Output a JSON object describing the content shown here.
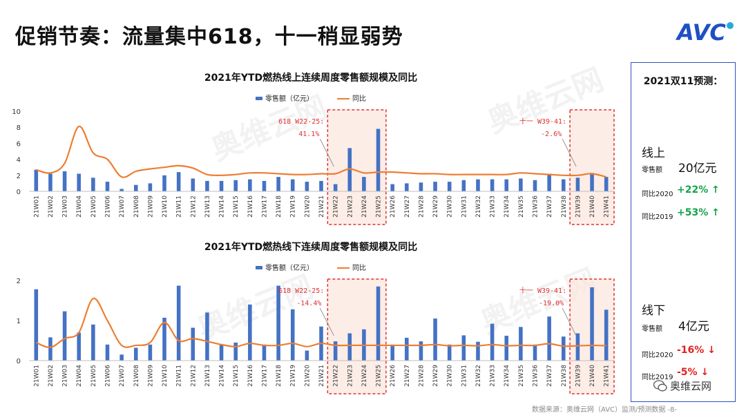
{
  "title": "促销节奏：流量集中618，十一稍显弱势",
  "logo_text": "AVC",
  "watermark_text": "奥维云网",
  "colors": {
    "bar": "#4472c4",
    "line": "#ed7d31",
    "highlight_border": "#e03030",
    "highlight_fill": "#fbe5dd",
    "up": "#14a24a",
    "down": "#e0201f",
    "panel_border": "#2d4ec8"
  },
  "chart_data": [
    {
      "type": "bar",
      "title": "2021年YTD燃热线上连续周度零售额规模及同比",
      "legend": [
        "零售额（亿元）",
        "同比"
      ],
      "categories": [
        "21W01",
        "21W02",
        "21W03",
        "21W04",
        "21W05",
        "21W06",
        "21W07",
        "21W08",
        "21W09",
        "21W10",
        "21W11",
        "21W12",
        "21W13",
        "21W14",
        "21W15",
        "21W16",
        "21W17",
        "21W18",
        "21W19",
        "21W20",
        "21W21",
        "21W22",
        "21W23",
        "21W24",
        "21W25",
        "21W26",
        "21W27",
        "21W28",
        "21W29",
        "21W30",
        "21W31",
        "21W32",
        "21W33",
        "21W34",
        "21W35",
        "21W36",
        "21W37",
        "21W38",
        "21W39",
        "21W40",
        "21W41"
      ],
      "series": [
        {
          "name": "零售额（亿元）",
          "kind": "bar",
          "values": [
            2.7,
            2.2,
            2.5,
            2.2,
            1.7,
            1.2,
            0.3,
            0.8,
            1.0,
            2.0,
            2.4,
            1.6,
            1.3,
            1.3,
            1.4,
            1.5,
            1.3,
            1.8,
            1.5,
            1.2,
            1.3,
            0.9,
            5.4,
            1.8,
            7.8,
            0.9,
            1.0,
            1.1,
            1.2,
            1.2,
            1.4,
            1.5,
            1.5,
            1.5,
            1.6,
            1.4,
            2.2,
            1.5,
            1.7,
            2.3,
            1.8
          ]
        },
        {
          "name": "同比",
          "kind": "line",
          "values": [
            2.7,
            2.3,
            3.5,
            8.1,
            4.8,
            4.0,
            1.8,
            2.5,
            2.8,
            3.0,
            3.2,
            2.9,
            2.1,
            2.0,
            2.1,
            2.3,
            2.3,
            2.2,
            2.1,
            2.1,
            2.2,
            2.2,
            2.8,
            2.3,
            2.4,
            2.4,
            2.3,
            2.2,
            2.2,
            2.1,
            2.1,
            2.1,
            2.1,
            2.1,
            2.3,
            2.2,
            2.1,
            2.0,
            2.0,
            2.2,
            1.8
          ]
        }
      ],
      "ylim": [
        0,
        10
      ],
      "yticks": [
        0,
        2,
        4,
        6,
        8,
        10
      ],
      "annotations": [
        {
          "line1": "618 W22-25:",
          "line2": "41.1%",
          "range": [
            "21W22",
            "21W25"
          ]
        },
        {
          "line1": "十一 W39-41:",
          "line2": "-2.6%",
          "range": [
            "21W39",
            "21W41"
          ]
        }
      ]
    },
    {
      "type": "bar",
      "title": "2021年YTD燃热线下连续周度零售额规模及同比",
      "legend": [
        "零售额（亿元）",
        "同比"
      ],
      "categories": [
        "21W01",
        "21W02",
        "21W03",
        "21W04",
        "21W05",
        "21W06",
        "21W07",
        "21W08",
        "21W09",
        "21W10",
        "21W11",
        "21W12",
        "21W13",
        "21W14",
        "21W15",
        "21W16",
        "21W17",
        "21W18",
        "21W19",
        "21W20",
        "21W21",
        "21W22",
        "21W23",
        "21W24",
        "21W25",
        "21W26",
        "21W27",
        "21W28",
        "21W29",
        "21W30",
        "21W31",
        "21W32",
        "21W33",
        "21W34",
        "21W35",
        "21W36",
        "21W37",
        "21W38",
        "21W39",
        "21W40",
        "21W41"
      ],
      "series": [
        {
          "name": "零售额（亿元）",
          "kind": "bar",
          "values": [
            1.78,
            0.58,
            1.23,
            0.7,
            0.9,
            0.4,
            0.15,
            0.32,
            0.4,
            1.07,
            1.87,
            0.82,
            1.2,
            0.4,
            0.45,
            1.4,
            0.4,
            1.87,
            1.28,
            0.25,
            0.85,
            0.48,
            0.68,
            0.78,
            1.85,
            0.4,
            0.57,
            0.48,
            1.05,
            0.4,
            0.63,
            0.47,
            0.92,
            0.62,
            0.84,
            0.4,
            1.1,
            0.6,
            0.68,
            1.83,
            1.27
          ]
        },
        {
          "name": "同比",
          "kind": "line",
          "values": [
            0.45,
            0.33,
            0.55,
            0.7,
            1.55,
            1.0,
            0.38,
            0.38,
            0.45,
            0.95,
            0.5,
            0.55,
            0.48,
            0.4,
            0.35,
            0.43,
            0.38,
            0.38,
            0.43,
            0.35,
            0.43,
            0.38,
            0.38,
            0.38,
            0.38,
            0.38,
            0.38,
            0.38,
            0.4,
            0.37,
            0.38,
            0.37,
            0.4,
            0.37,
            0.38,
            0.38,
            0.42,
            0.36,
            0.37,
            0.38,
            0.37
          ]
        }
      ],
      "ylim": [
        0,
        2
      ],
      "yticks": [
        0,
        1,
        2
      ],
      "annotations": [
        {
          "line1": "618 W22-25:",
          "line2": "-14.4%",
          "range": [
            "21W22",
            "21W25"
          ]
        },
        {
          "line1": "十一 W39-41:",
          "line2": "-19.0%",
          "range": [
            "21W39",
            "21W41"
          ]
        }
      ]
    }
  ],
  "forecast": {
    "title": "2021双11预测：",
    "online": {
      "label": "线上",
      "amount_label": "零售额",
      "amount_value": "20亿元",
      "yoy2020_label": "同比2020",
      "yoy2020_value": "+22%",
      "yoy2019_label": "同比2019",
      "yoy2019_value": "+53%"
    },
    "offline": {
      "label": "线下",
      "amount_label": "零售额",
      "amount_value": "4亿元",
      "yoy2020_label": "同比2020",
      "yoy2020_value": "-16%",
      "yoy2019_label": "同比2019",
      "yoy2019_value": "-5%"
    }
  },
  "wechat_label": "奥维云网",
  "source_text": "数据来源：奥维云网（AVC）监测/预测数据  -8-"
}
